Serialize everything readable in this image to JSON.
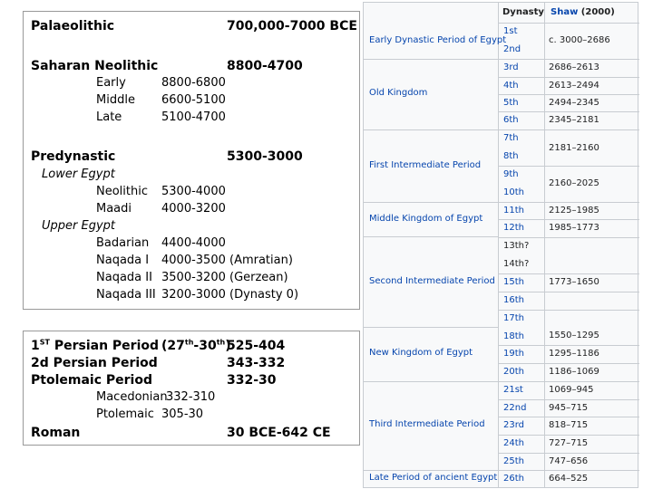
{
  "left": {
    "palaeolithic": {
      "label": "Palaeolithic",
      "dates": "700,000-7000  BCE"
    },
    "saharan": {
      "label": "Saharan Neolithic",
      "dates": "8800-4700",
      "rows": [
        {
          "name": "Early",
          "dates": "8800-6800"
        },
        {
          "name": "Middle",
          "dates": "6600-5100"
        },
        {
          "name": "Late",
          "dates": "5100-4700"
        }
      ]
    },
    "predynastic": {
      "label": "Predynastic",
      "dates": "5300-3000",
      "lower_label": "Lower Egypt",
      "lower_rows": [
        {
          "name": "Neolithic",
          "dates": "5300-4000"
        },
        {
          "name": "Maadi",
          "dates": "4000-3200"
        }
      ],
      "upper_label": "Upper Egypt",
      "upper_rows": [
        {
          "name": "Badarian",
          "dates": "4400-4000"
        },
        {
          "name": "Naqada I",
          "dates": "4000-3500 (Amratian)"
        },
        {
          "name": "Naqada II",
          "dates": "3500-3200 (Gerzean)"
        },
        {
          "name": "Naqada III",
          "dates": "3200-3000 (Dynasty 0)"
        }
      ]
    }
  },
  "bottom": {
    "persian1": {
      "num": "1",
      "sup": "ST",
      "rest": " Persian Period",
      "dyn_pre": "(27",
      "sup1": "th",
      "dyn_mid": "-30",
      "sup2": "th",
      "dyn_post": ")",
      "dates": "525-404"
    },
    "persian2": {
      "label": "2d Persian Period",
      "dates": "343-332"
    },
    "ptolemaic": {
      "label": "Ptolemaic Period",
      "dates": "332-30"
    },
    "sub": [
      {
        "name": "Macedonian",
        "dates": "332-310"
      },
      {
        "name": "Ptolemaic",
        "dates": "305-30"
      }
    ],
    "roman": {
      "label": "Roman",
      "dates": "30 BCE-642 CE"
    }
  },
  "wiki": {
    "header": {
      "dynasty": "Dynasty",
      "shaw": "Shaw",
      "shaw_year": " (2000)"
    },
    "periods": [
      "Early Dynastic Period of Egypt",
      "Old Kingdom",
      "First Intermediate Period",
      "Middle Kingdom of Egypt",
      "Second Intermediate Period",
      "New Kingdom of Egypt",
      "Third Intermediate Period",
      "Late Period of ancient Egypt"
    ],
    "dynasties": [
      "1st",
      "2nd",
      "3rd",
      "4th",
      "5th",
      "6th",
      "7th",
      "8th",
      "9th",
      "10th",
      "11th",
      "12th",
      "13th?",
      "14th?",
      "15th",
      "16th",
      "17th",
      "18th",
      "19th",
      "20th",
      "21st",
      "22nd",
      "23rd",
      "24th",
      "25th",
      "26th"
    ],
    "dates": [
      "c. 3000–2686",
      "2686–2613",
      "2613–2494",
      "2494–2345",
      "2345–2181",
      "2181–2160",
      "2160–2025",
      "2125–1985",
      "1985–1773",
      "1773–1650",
      "1550–1295",
      "1295–1186",
      "1186–1069",
      "1069–945",
      "945–715",
      "818–715",
      "727–715",
      "747–656",
      "664–525"
    ]
  }
}
